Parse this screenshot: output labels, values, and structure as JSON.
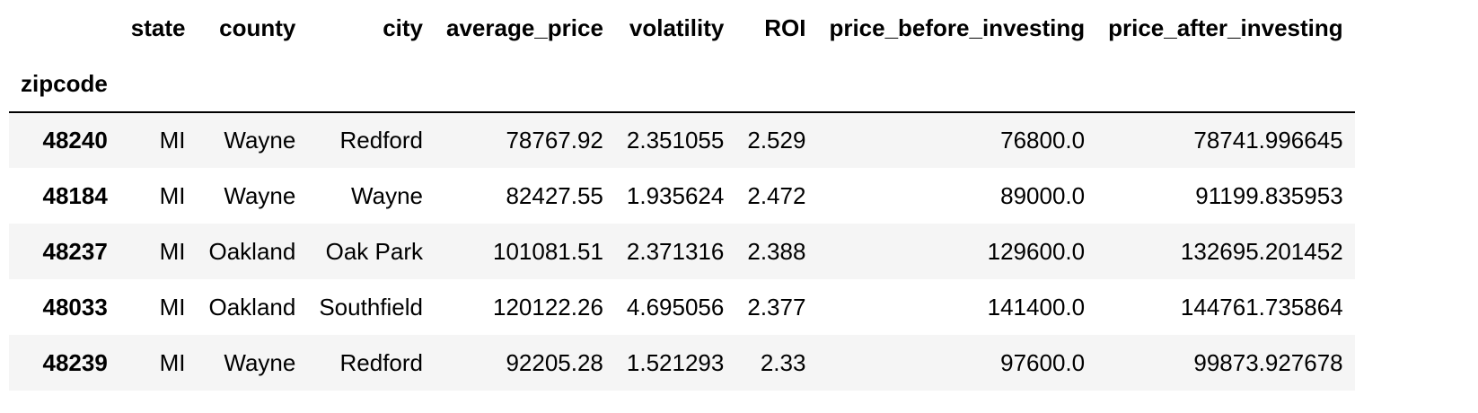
{
  "table": {
    "index_name": "zipcode",
    "columns": [
      "state",
      "county",
      "city",
      "average_price",
      "volatility",
      "ROI",
      "price_before_investing",
      "price_after_investing"
    ],
    "rows": [
      {
        "index": "48240",
        "cells": [
          "MI",
          "Wayne",
          "Redford",
          "78767.92",
          "2.351055",
          "2.529",
          "76800.0",
          "78741.996645"
        ]
      },
      {
        "index": "48184",
        "cells": [
          "MI",
          "Wayne",
          "Wayne",
          "82427.55",
          "1.935624",
          "2.472",
          "89000.0",
          "91199.835953"
        ]
      },
      {
        "index": "48237",
        "cells": [
          "MI",
          "Oakland",
          "Oak Park",
          "101081.51",
          "2.371316",
          "2.388",
          "129600.0",
          "132695.201452"
        ]
      },
      {
        "index": "48033",
        "cells": [
          "MI",
          "Oakland",
          "Southfield",
          "120122.26",
          "4.695056",
          "2.377",
          "141400.0",
          "144761.735864"
        ]
      },
      {
        "index": "48239",
        "cells": [
          "MI",
          "Wayne",
          "Redford",
          "92205.28",
          "1.521293",
          "2.33",
          "97600.0",
          "99873.927678"
        ]
      }
    ]
  }
}
